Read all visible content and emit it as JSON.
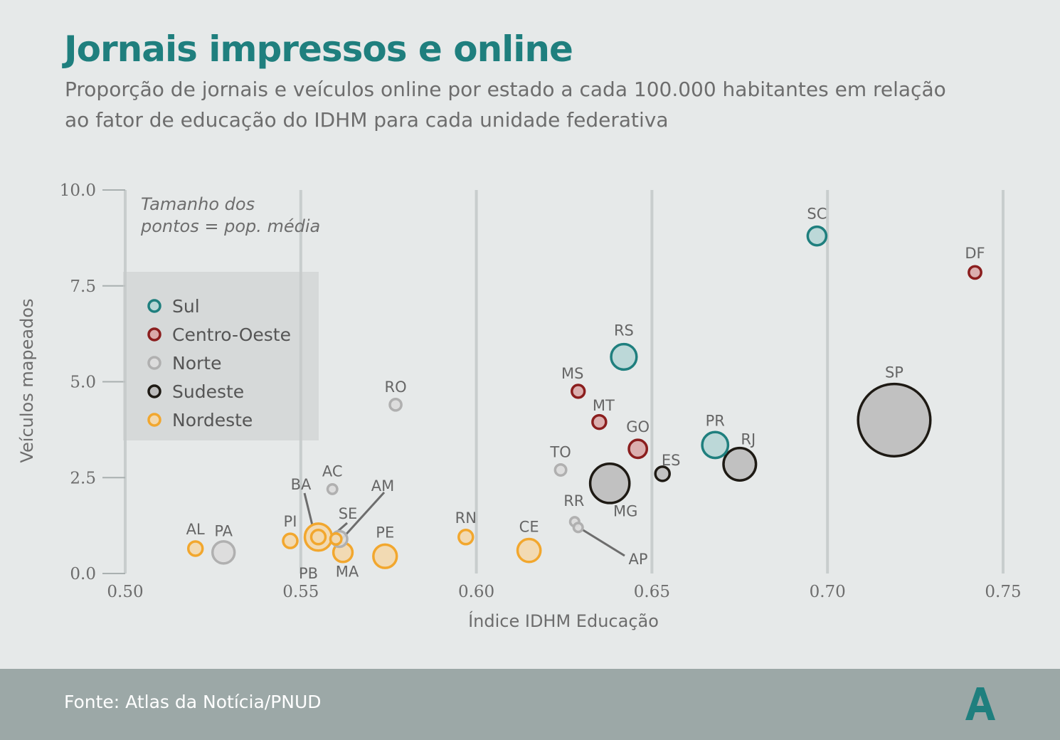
{
  "header": {
    "title": "Jornais impressos e online",
    "subtitle": "Proporção de jornais e veículos online por estado a cada 100.000 habitantes em relação ao fator de educação do IDHM para cada unidade federativa"
  },
  "footer": {
    "source": "Fonte: Atlas da Notícia/PNUD",
    "logo_icon": "atlas-a-logo-icon",
    "logo_color": "#1f7f7e"
  },
  "chart_data": {
    "type": "scatter",
    "xlabel": "Índice IDHM Educação",
    "ylabel": "Veículos mapeados",
    "xlim": [
      0.5,
      0.75
    ],
    "ylim": [
      0,
      10
    ],
    "x_ticks": [
      "0.50",
      "0.55",
      "0.60",
      "0.65",
      "0.70",
      "0.75"
    ],
    "y_ticks": [
      "0.0",
      "2.5",
      "5.0",
      "7.5",
      "10.0"
    ],
    "grid": "vertical",
    "size_note": "Tamanho dos pontos = pop. média",
    "legend_position": "left",
    "legend": [
      {
        "name": "Sul",
        "stroke": "#1f7f7e",
        "fill": "#b7d6d6"
      },
      {
        "name": "Centro-Oeste",
        "stroke": "#8b1e1e",
        "fill": "#d9a9a9"
      },
      {
        "name": "Norte",
        "stroke": "#b0b0b0",
        "fill": "#dcdcdc"
      },
      {
        "name": "Sudeste",
        "stroke": "#1e1a14",
        "fill": "#bcbcbc"
      },
      {
        "name": "Nordeste",
        "stroke": "#f2a72e",
        "fill": "#f3d8ad"
      }
    ],
    "points": [
      {
        "label": "AL",
        "region": "Nordeste",
        "x": 0.52,
        "y": 0.65,
        "size": 1
      },
      {
        "label": "PA",
        "region": "Norte",
        "x": 0.528,
        "y": 0.55,
        "size": 2.4
      },
      {
        "label": "PI",
        "region": "Nordeste",
        "x": 0.547,
        "y": 0.85,
        "size": 1
      },
      {
        "label": "BA",
        "region": "Nordeste",
        "x": 0.555,
        "y": 0.95,
        "size": 3.6
      },
      {
        "label": "PB",
        "region": "Nordeste",
        "x": 0.555,
        "y": 0.95,
        "size": 1
      },
      {
        "label": "AC",
        "region": "Norte",
        "x": 0.559,
        "y": 2.2,
        "size": 0.45
      },
      {
        "label": "SE",
        "region": "Nordeste",
        "x": 0.56,
        "y": 0.9,
        "size": 0.6
      },
      {
        "label": "AM",
        "region": "Norte",
        "x": 0.561,
        "y": 0.9,
        "size": 1.2
      },
      {
        "label": "MA",
        "region": "Nordeste",
        "x": 0.562,
        "y": 0.55,
        "size": 1.8
      },
      {
        "label": "PE",
        "region": "Nordeste",
        "x": 0.574,
        "y": 0.45,
        "size": 2.7
      },
      {
        "label": "RO",
        "region": "Norte",
        "x": 0.577,
        "y": 4.4,
        "size": 0.65
      },
      {
        "label": "RN",
        "region": "Nordeste",
        "x": 0.597,
        "y": 0.95,
        "size": 1
      },
      {
        "label": "CE",
        "region": "Nordeste",
        "x": 0.615,
        "y": 0.6,
        "size": 2.6
      },
      {
        "label": "TO",
        "region": "Norte",
        "x": 0.624,
        "y": 2.7,
        "size": 0.6
      },
      {
        "label": "RR",
        "region": "Norte",
        "x": 0.628,
        "y": 1.35,
        "size": 0.4
      },
      {
        "label": "AP",
        "region": "Norte",
        "x": 0.629,
        "y": 1.2,
        "size": 0.4
      },
      {
        "label": "MS",
        "region": "Centro-Oeste",
        "x": 0.629,
        "y": 4.75,
        "size": 0.8
      },
      {
        "label": "MT",
        "region": "Centro-Oeste",
        "x": 0.635,
        "y": 3.95,
        "size": 0.9
      },
      {
        "label": "MG",
        "region": "Sudeste",
        "x": 0.638,
        "y": 2.35,
        "size": 7.6
      },
      {
        "label": "RS",
        "region": "Sul",
        "x": 0.642,
        "y": 5.65,
        "size": 3.2
      },
      {
        "label": "GO",
        "region": "Centro-Oeste",
        "x": 0.646,
        "y": 3.25,
        "size": 1.6
      },
      {
        "label": "ES",
        "region": "Sudeste",
        "x": 0.653,
        "y": 2.6,
        "size": 1
      },
      {
        "label": "PR",
        "region": "Sul",
        "x": 0.668,
        "y": 3.35,
        "size": 3.3
      },
      {
        "label": "RJ",
        "region": "Sudeste",
        "x": 0.675,
        "y": 2.85,
        "size": 5.2
      },
      {
        "label": "SC",
        "region": "Sul",
        "x": 0.697,
        "y": 8.8,
        "size": 1.7
      },
      {
        "label": "SP",
        "region": "Sudeste",
        "x": 0.719,
        "y": 4.0,
        "size": 25.8
      },
      {
        "label": "DF",
        "region": "Centro-Oeste",
        "x": 0.742,
        "y": 7.85,
        "size": 0.75
      }
    ]
  }
}
